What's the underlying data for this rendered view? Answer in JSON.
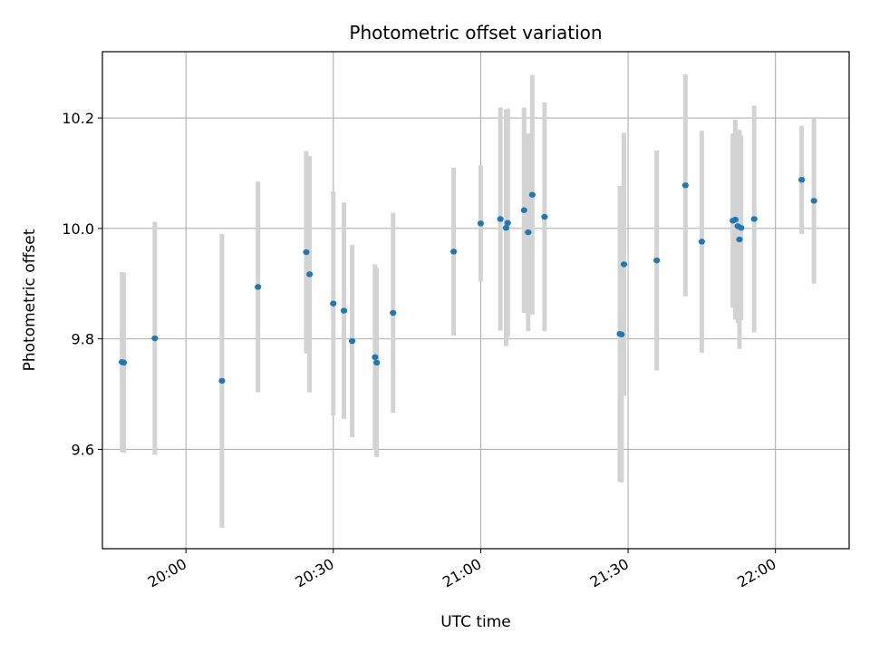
{
  "chart_data": {
    "type": "scatter",
    "title": "Photometric offset variation",
    "xlabel": "UTC time",
    "ylabel": "Photometric offset",
    "x_unit": "UTC clock time",
    "xlim": [
      "19:43",
      "22:15"
    ],
    "ylim": [
      9.42,
      10.32
    ],
    "x_ticks": [
      "20:00",
      "20:30",
      "21:00",
      "21:30",
      "22:00"
    ],
    "y_ticks": [
      "9.6",
      "9.8",
      "10.0",
      "10.2"
    ],
    "grid": true,
    "legend": "none",
    "marker_color": "#1f77b4",
    "errorbar_color": "#d3d3d3",
    "points": [
      {
        "time": "19:47:00",
        "y": 9.758,
        "yerr": 0.163
      },
      {
        "time": "19:47:20",
        "y": 9.757,
        "yerr": 0.163
      },
      {
        "time": "19:53:40",
        "y": 9.801,
        "yerr": 0.211
      },
      {
        "time": "20:07:20",
        "y": 9.724,
        "yerr": 0.266
      },
      {
        "time": "20:14:40",
        "y": 9.894,
        "yerr": 0.191
      },
      {
        "time": "20:24:30",
        "y": 9.957,
        "yerr": 0.183
      },
      {
        "time": "20:25:10",
        "y": 9.917,
        "yerr": 0.214
      },
      {
        "time": "20:30:00",
        "y": 9.864,
        "yerr": 0.203
      },
      {
        "time": "20:32:10",
        "y": 9.851,
        "yerr": 0.196
      },
      {
        "time": "20:33:50",
        "y": 9.796,
        "yerr": 0.174
      },
      {
        "time": "20:38:30",
        "y": 9.767,
        "yerr": 0.168
      },
      {
        "time": "20:38:50",
        "y": 9.757,
        "yerr": 0.171
      },
      {
        "time": "20:42:10",
        "y": 9.847,
        "yerr": 0.181
      },
      {
        "time": "20:54:30",
        "y": 9.958,
        "yerr": 0.152
      },
      {
        "time": "21:00:00",
        "y": 10.009,
        "yerr": 0.105
      },
      {
        "time": "21:04:00",
        "y": 10.017,
        "yerr": 0.202
      },
      {
        "time": "21:05:10",
        "y": 10.001,
        "yerr": 0.214
      },
      {
        "time": "21:05:30",
        "y": 10.01,
        "yerr": 0.207
      },
      {
        "time": "21:08:50",
        "y": 10.033,
        "yerr": 0.186
      },
      {
        "time": "21:09:40",
        "y": 9.993,
        "yerr": 0.179
      },
      {
        "time": "21:10:30",
        "y": 10.061,
        "yerr": 0.217
      },
      {
        "time": "21:13:00",
        "y": 10.021,
        "yerr": 0.207
      },
      {
        "time": "21:28:20",
        "y": 9.809,
        "yerr": 0.268
      },
      {
        "time": "21:28:40",
        "y": 9.808,
        "yerr": 0.268
      },
      {
        "time": "21:29:10",
        "y": 9.935,
        "yerr": 0.238
      },
      {
        "time": "21:35:50",
        "y": 9.942,
        "yerr": 0.199
      },
      {
        "time": "21:41:40",
        "y": 10.078,
        "yerr": 0.201
      },
      {
        "time": "21:45:00",
        "y": 9.976,
        "yerr": 0.201
      },
      {
        "time": "21:51:20",
        "y": 10.014,
        "yerr": 0.158
      },
      {
        "time": "21:51:50",
        "y": 10.016,
        "yerr": 0.181
      },
      {
        "time": "21:52:20",
        "y": 10.004,
        "yerr": 0.175
      },
      {
        "time": "21:52:40",
        "y": 9.98,
        "yerr": 0.198
      },
      {
        "time": "21:53:00",
        "y": 10.001,
        "yerr": 0.167
      },
      {
        "time": "21:55:40",
        "y": 10.017,
        "yerr": 0.205
      },
      {
        "time": "22:05:20",
        "y": 10.088,
        "yerr": 0.098
      },
      {
        "time": "22:07:50",
        "y": 10.05,
        "yerr": 0.15
      }
    ]
  }
}
